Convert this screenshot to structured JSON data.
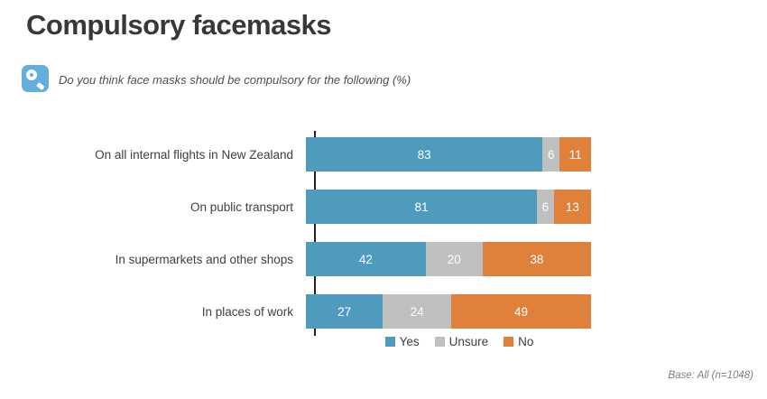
{
  "page": {
    "title": "Compulsory facemasks",
    "question": "Do you think face masks should be compulsory for the following (%)",
    "base_note": "Base: All (n=1048)"
  },
  "colors": {
    "yes_blue": "#4E9BBE",
    "unsure_gray": "#BFBFBF",
    "no_orange": "#E0813B",
    "axis_black": "#1F1F1F",
    "icon_blue": "#62AFDE"
  },
  "chart_data": {
    "type": "bar",
    "orientation": "horizontal",
    "stacked": true,
    "title": "Compulsory facemasks",
    "subtitle": "Do you think face masks should be compulsory for the following (%)",
    "categories": [
      "On all internal flights in New Zealand",
      "On public transport",
      "In supermarkets and other shops",
      "In places of work"
    ],
    "series": [
      {
        "name": "Yes",
        "color": "#4E9BBE",
        "values": [
          83,
          81,
          42,
          27
        ]
      },
      {
        "name": "Unsure",
        "color": "#BFBFBF",
        "values": [
          6,
          6,
          20,
          24
        ]
      },
      {
        "name": "No",
        "color": "#E0813B",
        "values": [
          11,
          13,
          38,
          49
        ]
      }
    ],
    "xlim": [
      0,
      100
    ],
    "value_labels": true,
    "grid": false,
    "legend_position": "bottom-center",
    "annotation": "Base: All (n=1048)"
  }
}
